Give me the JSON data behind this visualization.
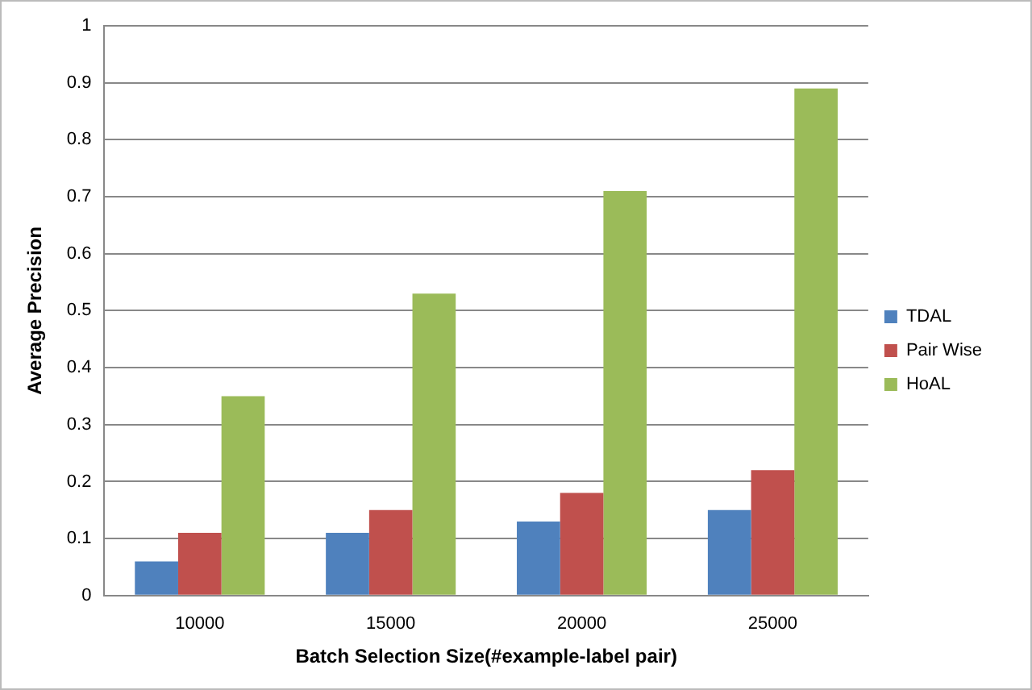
{
  "chart_data": {
    "type": "bar",
    "xlabel": "Batch Selection Size(#example-label pair)",
    "ylabel": "Average Precision",
    "categories": [
      "10000",
      "15000",
      "20000",
      "25000"
    ],
    "series": [
      {
        "name": "TDAL",
        "color": "#4f81bd",
        "values": [
          0.06,
          0.11,
          0.13,
          0.15
        ]
      },
      {
        "name": "Pair Wise",
        "color": "#c0504d",
        "values": [
          0.11,
          0.15,
          0.18,
          0.22
        ]
      },
      {
        "name": "HoAL",
        "color": "#9bbb59",
        "values": [
          0.35,
          0.53,
          0.71,
          0.89
        ]
      }
    ],
    "ylim": [
      0,
      1
    ],
    "yticks": [
      0,
      0.1,
      0.2,
      0.3,
      0.4,
      0.5,
      0.6,
      0.7,
      0.8,
      0.9,
      1
    ],
    "grid": "y",
    "legend": "right"
  }
}
